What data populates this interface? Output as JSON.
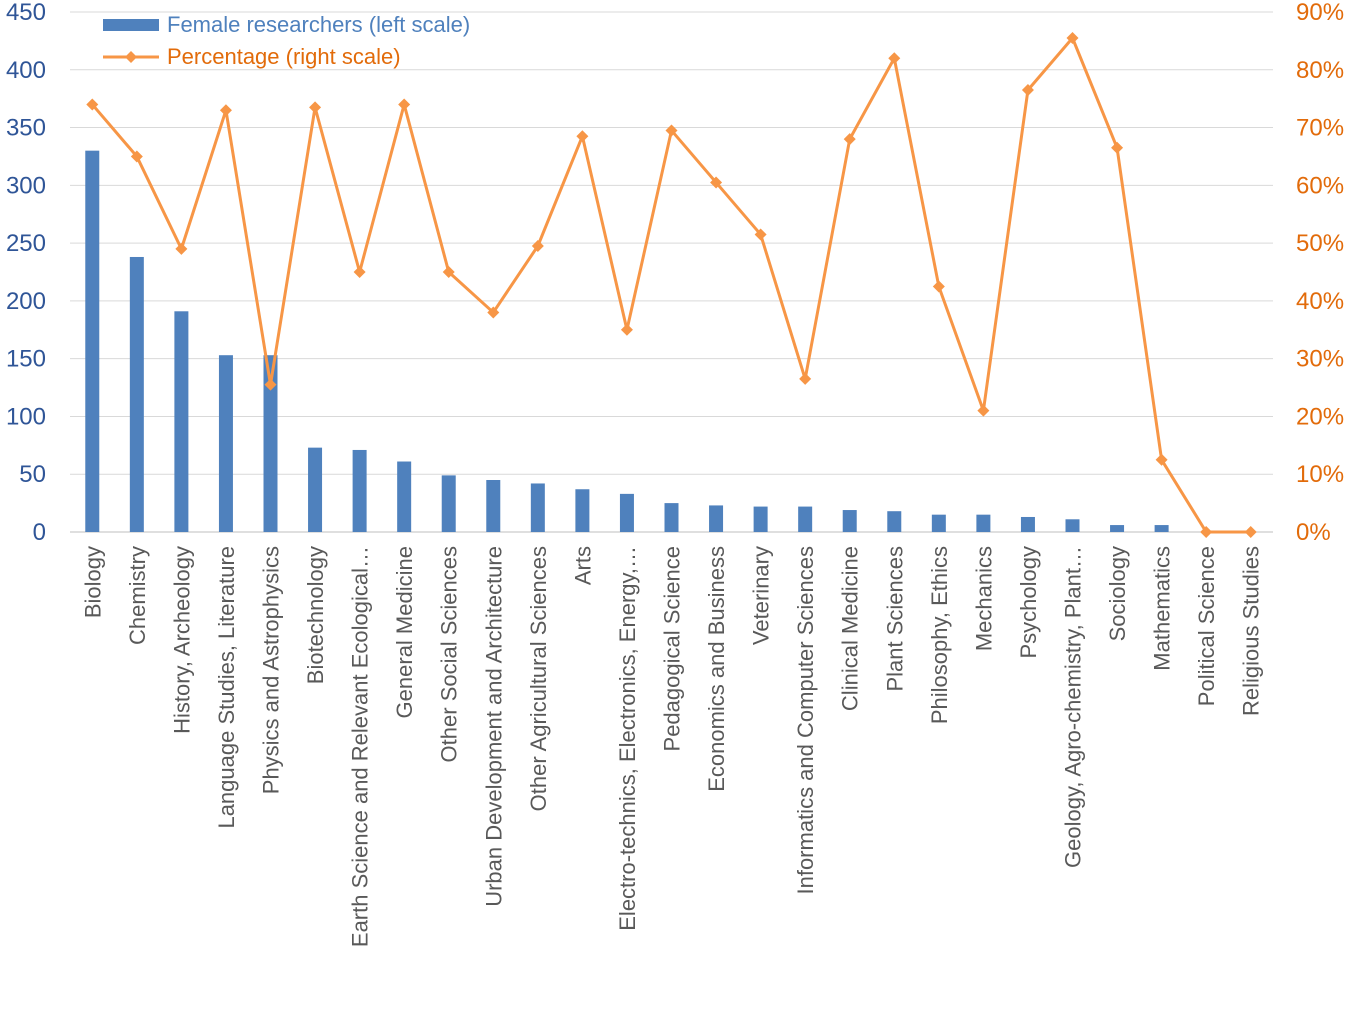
{
  "chart_data": {
    "type": "bar",
    "categories": [
      "Biology",
      "Chemistry",
      "History, Archeology",
      "Language Studies, Literature",
      "Physics and Astrophysics",
      "Biotechnology",
      "Earth Science and Relevant Ecological…",
      "General Medicine",
      "Other Social Sciences",
      "Urban Development and Architecture",
      "Other Agricultural Sciences",
      "Arts",
      "Electro-technics, Electronics, Energy,…",
      "Pedagogical Science",
      "Economics and Business",
      "Veterinary",
      "Informatics and Computer Sciences",
      "Clinical Medicine",
      "Plant Sciences",
      "Philosophy, Ethics",
      "Mechanics",
      "Psychology",
      "Geology, Agro-chemistry, Plant…",
      "Sociology",
      "Mathematics",
      "Political Science",
      "Religious Studies"
    ],
    "series": [
      {
        "name": "Female researchers (left scale)",
        "kind": "bar",
        "axis": "left",
        "color": "#4f81bd",
        "values": [
          330,
          238,
          191,
          153,
          153,
          73,
          71,
          61,
          49,
          45,
          42,
          37,
          33,
          25,
          23,
          22,
          22,
          19,
          18,
          15,
          15,
          13,
          11,
          6,
          6,
          0,
          0
        ]
      },
      {
        "name": "Percentage (right scale)",
        "kind": "line",
        "axis": "right",
        "color": "#f79646",
        "values": [
          74,
          65,
          49,
          73,
          25.5,
          73.5,
          45,
          74,
          45,
          38,
          49.5,
          68.5,
          35,
          69.5,
          60.5,
          51.5,
          26.5,
          68,
          82,
          42.5,
          21,
          76.5,
          85.5,
          66.5,
          12.5,
          0,
          0
        ]
      }
    ],
    "y_left": {
      "min": 0,
      "max": 450,
      "step": 50,
      "ticks": [
        "0",
        "50",
        "100",
        "150",
        "200",
        "250",
        "300",
        "350",
        "400",
        "450"
      ],
      "color": "#2f5597"
    },
    "y_right": {
      "min": 0,
      "max": 90,
      "step": 10,
      "ticks": [
        "0%",
        "10%",
        "20%",
        "30%",
        "40%",
        "50%",
        "60%",
        "70%",
        "80%",
        "90%"
      ],
      "color": "#e26b0a"
    },
    "grid": true,
    "legend_position": "top-left"
  }
}
